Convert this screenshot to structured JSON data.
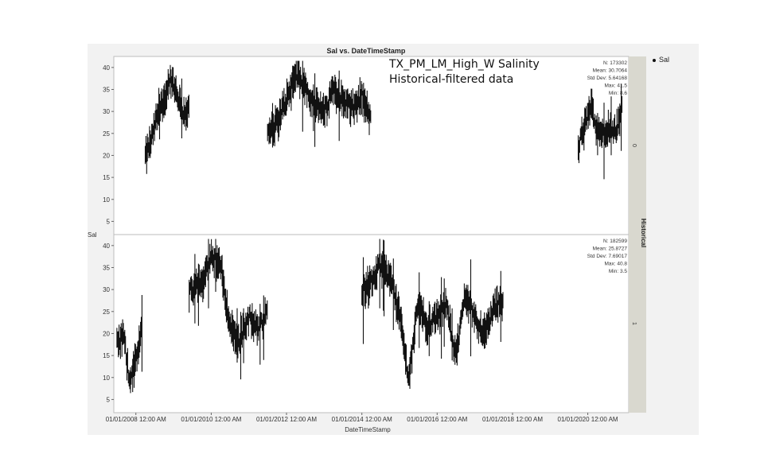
{
  "chart_data": {
    "type": "scatter",
    "title": "Sal vs. DateTimeStamp",
    "xlabel": "DateTimeStamp",
    "ylabel": "Sal",
    "legend": {
      "entries": [
        "Sal"
      ],
      "position": "top-right"
    },
    "annotation": [
      "TX_PM_LM_High_W Salinity",
      "Historical-filtered data"
    ],
    "group_label": "Historical",
    "x_ticks": [
      "01/01/2008 12:00 AM",
      "01/01/2010 12:00 AM",
      "01/01/2012 12:00 AM",
      "01/01/2014 12:00 AM",
      "01/01/2016 12:00 AM",
      "01/01/2018 12:00 AM",
      "01/01/2020 12:00 AM"
    ],
    "xlim": [
      "2007-06-01",
      "2021-02-01"
    ],
    "panels": [
      {
        "group": "0",
        "y_ticks": [
          5,
          10,
          15,
          20,
          25,
          30,
          35,
          40
        ],
        "ylim": [
          2,
          42.5
        ],
        "stats": [
          "N: 173302",
          "Mean: 30.7064",
          "Std Dev: 5.64168",
          "Max: 41.5",
          "Min: 8.6"
        ],
        "segments": [
          {
            "x": [
              "2008-04-01",
              "2008-06-01",
              "2008-08-01",
              "2008-10-01",
              "2008-12-01",
              "2009-02-01",
              "2009-04-01",
              "2009-06-01"
            ],
            "y": [
              20,
              24,
              30,
              33,
              38,
              34,
              30,
              31
            ]
          },
          {
            "x": [
              "2011-07-01",
              "2011-10-01",
              "2012-01-01",
              "2012-04-01",
              "2012-07-01",
              "2012-10-01",
              "2013-01-01",
              "2013-04-01",
              "2013-07-01",
              "2013-10-01",
              "2014-01-01",
              "2014-04-01"
            ],
            "y": [
              25,
              28,
              33,
              39,
              36,
              32,
              30,
              36,
              33,
              31,
              34,
              28
            ]
          },
          {
            "x": [
              "2019-10-01",
              "2019-12-01",
              "2020-02-01",
              "2020-04-01",
              "2020-06-01",
              "2020-08-01",
              "2020-10-01",
              "2020-12-01"
            ],
            "y": [
              22,
              27,
              32,
              26,
              26,
              27,
              26,
              31
            ]
          }
        ]
      },
      {
        "group": "1",
        "y_ticks": [
          5,
          10,
          15,
          20,
          25,
          30,
          35,
          40
        ],
        "ylim": [
          2,
          42.5
        ],
        "stats": [
          "N: 182599",
          "Mean: 25.8727",
          "Std Dev: 7.69017",
          "Max: 40.8",
          "Min: 3.5"
        ],
        "segments": [
          {
            "x": [
              "2007-07-01",
              "2007-09-01",
              "2007-11-01",
              "2008-01-01",
              "2008-03-01"
            ],
            "y": [
              18,
              20,
              10,
              14,
              22
            ]
          },
          {
            "x": [
              "2009-06-01",
              "2009-10-01",
              "2010-01-01",
              "2010-04-01",
              "2010-07-01",
              "2010-10-01",
              "2011-01-01",
              "2011-04-01",
              "2011-07-01"
            ],
            "y": [
              30,
              32,
              38,
              36,
              22,
              19,
              24,
              21,
              26
            ]
          },
          {
            "x": [
              "2014-01-01",
              "2014-04-01",
              "2014-07-01",
              "2014-10-01",
              "2015-01-01",
              "2015-04-01",
              "2015-07-01",
              "2015-10-01",
              "2016-01-01",
              "2016-04-01",
              "2016-07-01",
              "2016-10-01",
              "2017-01-01",
              "2017-04-01",
              "2017-07-01",
              "2017-10-01"
            ],
            "y": [
              30,
              32,
              36,
              33,
              25,
              10,
              28,
              22,
              24,
              27,
              15,
              30,
              24,
              20,
              26,
              28
            ]
          }
        ]
      }
    ]
  }
}
